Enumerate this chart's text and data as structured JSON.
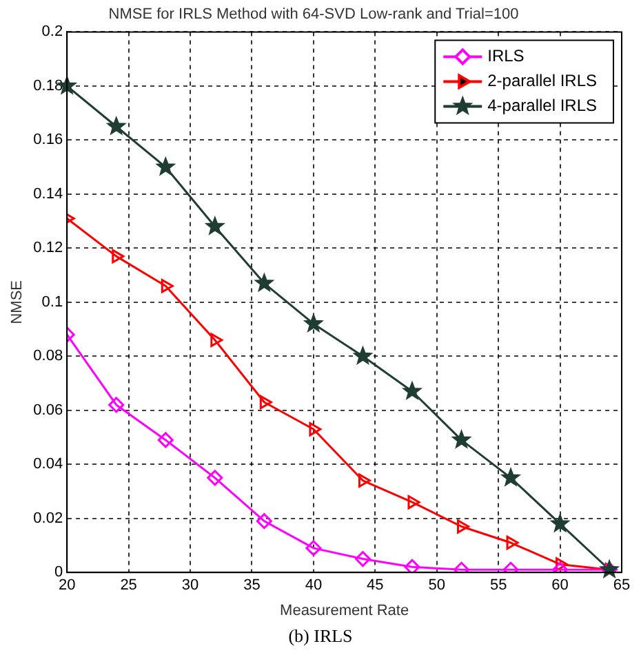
{
  "chart_data": {
    "type": "line",
    "title": "NMSE for IRLS Method with 64-SVD Low-rank and Trial=100",
    "xlabel": "Measurement Rate",
    "ylabel": "NMSE",
    "annotations": [
      "(b) IRLS"
    ],
    "x": [
      20,
      24,
      28,
      32,
      36,
      40,
      44,
      48,
      52,
      56,
      60,
      64
    ],
    "series": [
      {
        "name": "IRLS",
        "color": "#ff00ff",
        "marker": "diamond",
        "values": [
          0.088,
          0.062,
          0.049,
          0.035,
          0.019,
          0.009,
          0.005,
          0.002,
          0.001,
          0.001,
          0.001,
          0.001
        ]
      },
      {
        "name": "2-parallel IRLS",
        "color": "#ff0000",
        "marker": "triangle",
        "values": [
          0.131,
          0.117,
          0.106,
          0.086,
          0.063,
          0.053,
          0.034,
          0.026,
          0.017,
          0.011,
          0.003,
          0.001
        ]
      },
      {
        "name": "4-parallel IRLS",
        "color": "#1f3d33",
        "marker": "star",
        "values": [
          0.18,
          0.165,
          0.15,
          0.128,
          0.107,
          0.092,
          0.08,
          0.067,
          0.049,
          0.035,
          0.018,
          0.001
        ]
      }
    ],
    "xlim": [
      20,
      65
    ],
    "xticks": [
      20,
      25,
      30,
      35,
      40,
      45,
      50,
      55,
      60,
      65
    ],
    "ylim": [
      0,
      0.2
    ],
    "yticks": [
      0,
      0.02,
      0.04,
      0.06,
      0.08,
      0.1,
      0.12,
      0.14,
      0.16,
      0.18,
      0.2
    ],
    "grid": true,
    "legend": "top right",
    "line_style": "solid"
  }
}
